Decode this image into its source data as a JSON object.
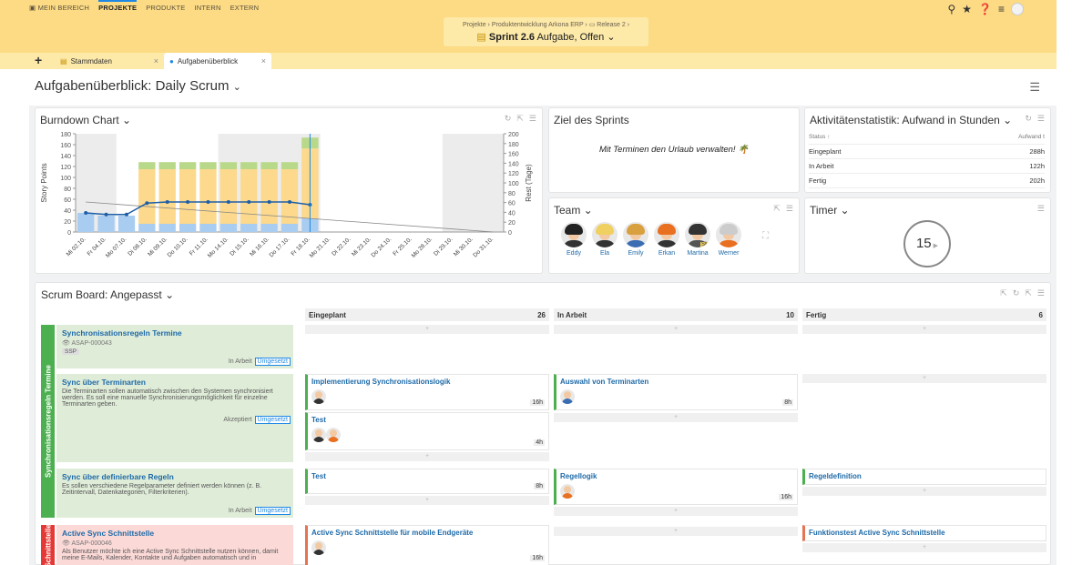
{
  "topnav": {
    "mybereich": "MEIN BEREICH",
    "projekte": "PROJEKTE",
    "produkte": "PRODUKTE",
    "intern": "INTERN",
    "extern": "EXTERN"
  },
  "breadcrumb": "Projekte  ›  Produktentwicklung Arkona ERP  ›  ▭ Release 2  ›",
  "sprint": {
    "name": "Sprint 2.6",
    "type": "Aufgabe, Offen"
  },
  "tabs": [
    {
      "label": "Stammdaten"
    },
    {
      "label": "Aufgabenüberblick"
    }
  ],
  "page_title": "Aufgabenüberblick: Daily Scrum",
  "burndown": {
    "title": "Burndown Chart"
  },
  "chart_data": {
    "type": "bar",
    "ylabel": "Story Points",
    "y2label": "Rest (Tage)",
    "ylim": [
      0,
      180
    ],
    "y2lim": [
      0,
      200
    ],
    "yticks": [
      0,
      20,
      40,
      60,
      80,
      100,
      120,
      140,
      160,
      180
    ],
    "y2ticks": [
      0,
      20,
      40,
      60,
      80,
      100,
      120,
      140,
      160,
      180,
      200
    ],
    "categories": [
      "Mi 02.10.",
      "Fr 04.10.",
      "Mo 07.10.",
      "Di 08.10.",
      "Mi 09.10.",
      "Do 10.10.",
      "Fr 11.10.",
      "Mo 14.10.",
      "Di 15.10.",
      "Mi 16.10.",
      "Do 17.10.",
      "Fr 18.10.",
      "Mo 21.10.",
      "Di 22.10.",
      "Mi 23.10.",
      "Do 24.10.",
      "Fr 25.10.",
      "Mo 28.10.",
      "Di 29.10.",
      "Mi 30.10.",
      "Do 31.10."
    ],
    "series": [
      {
        "values": [
          35,
          30,
          30,
          15,
          15,
          15,
          15,
          15,
          15,
          15,
          15,
          25,
          null,
          null,
          null,
          null,
          null,
          null,
          null,
          null,
          null
        ],
        "color": "#a9cdf0"
      },
      {
        "values": [
          0,
          0,
          0,
          100,
          100,
          100,
          100,
          100,
          100,
          100,
          100,
          128,
          null,
          null,
          null,
          null,
          null,
          null,
          null,
          null,
          null
        ],
        "color": "#fcd98c"
      },
      {
        "values": [
          0,
          0,
          0,
          13,
          13,
          13,
          13,
          13,
          13,
          13,
          13,
          20,
          null,
          null,
          null,
          null,
          null,
          null,
          null,
          null,
          null
        ],
        "color": "#b9d98a"
      }
    ],
    "line": [
      35,
      32,
      32,
      53,
      55,
      55,
      55,
      55,
      55,
      55,
      55,
      50,
      null,
      null,
      null,
      null,
      null,
      null,
      null,
      null,
      null
    ],
    "ideal_start": 55,
    "ideal_end": 0,
    "shaded_ranges": [
      [
        0,
        1
      ],
      [
        7,
        11
      ],
      [
        18,
        20
      ]
    ]
  },
  "goal": {
    "title": "Ziel des Sprints",
    "text": "Mit Terminen den Urlaub verwalten! 🌴"
  },
  "team": {
    "title": "Team",
    "members": [
      {
        "name": "Eddy",
        "hair": "#222",
        "body": "#333"
      },
      {
        "name": "Ela",
        "hair": "#f0d060",
        "body": "#333"
      },
      {
        "name": "Emily",
        "hair": "#d9a040",
        "body": "#3b6db3"
      },
      {
        "name": "Erkan",
        "hair": "#e87020",
        "body": "#333"
      },
      {
        "name": "Martina",
        "hair": "#333",
        "body": "#555",
        "badge": "SM"
      },
      {
        "name": "Werner",
        "hair": "#ccc",
        "body": "#e87020"
      }
    ]
  },
  "stats": {
    "title": "Aktivitätenstatistik: Aufwand in Stunden",
    "col_status": "Status ↑",
    "col_aufwand": "Aufwand t",
    "rows": [
      {
        "status": "Eingeplant",
        "value": "288h"
      },
      {
        "status": "In Arbeit",
        "value": "122h"
      },
      {
        "status": "Fertig",
        "value": "202h"
      }
    ]
  },
  "timer": {
    "title": "Timer",
    "value": "15"
  },
  "board": {
    "title": "Scrum Board: Angepasst",
    "columns": [
      {
        "name": "Eingeplant",
        "count": "26"
      },
      {
        "name": "In Arbeit",
        "count": "10"
      },
      {
        "name": "Fertig",
        "count": "6"
      }
    ],
    "lanes": [
      {
        "label": "Synchronisationsregeln Termine",
        "color": "#4caf50"
      },
      {
        "label": "Schnittstelle",
        "color": "#e53935"
      }
    ],
    "stories": [
      {
        "title": "Synchronisationsregeln Termine",
        "id": "ASAP-000043",
        "desc": "",
        "ssp": "SSP",
        "status": "In Arbeit",
        "badge": "Umgesetzt",
        "bg": "#dfecd8"
      },
      {
        "title": "Sync über Terminarten",
        "desc": "Die Terminarten sollen automatisch zwischen den Systemen synchronisiert werden. Es soll eine manuelle Synchronisierungsmöglichkeit für einzelne Terminarten geben.",
        "status": "Akzeptiert",
        "badge": "Umgesetzt",
        "bg": "#dfecd8"
      },
      {
        "title": "Sync über definierbare Regeln",
        "desc": "Es sollen verschiedene Regelparameter definiert werden können (z. B. Zeitintervall, Datenkategorien, Filterkriterien).",
        "status": "In Arbeit",
        "badge": "Umgesetzt",
        "bg": "#dfecd8"
      },
      {
        "title": "Active Sync Schnittstelle",
        "id": "ASAP-000046",
        "desc": "Als Benutzer möchte ich eine Active Sync Schnittstelle nutzen können, damit meine E-Mails, Kalender, Kontakte und Aufgaben automatisch und in",
        "bg": "#fbd9d7"
      }
    ],
    "tasks": [
      {
        "title": "Implementierung Synchronisationslogik",
        "hours": "16h"
      },
      {
        "title": "Test",
        "hours": "4h"
      },
      {
        "title": "Test",
        "hours": "8h"
      },
      {
        "title": "Active Sync Schnittstelle für mobile Endgeräte",
        "hours": "16h"
      },
      {
        "title": "Auswahl von Terminarten",
        "hours": "8h"
      },
      {
        "title": "Regellogik",
        "hours": "16h"
      },
      {
        "title": "Regeldefinition",
        "hours": ""
      },
      {
        "title": "Funktionstest Active Sync Schnittstelle",
        "hours": ""
      }
    ]
  }
}
